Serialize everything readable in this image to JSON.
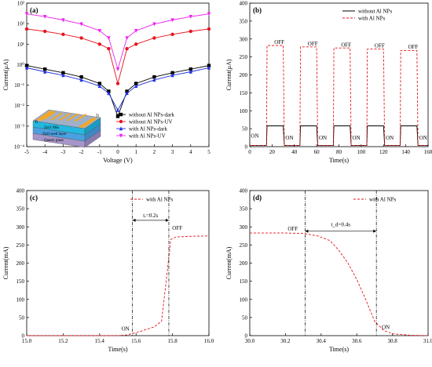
{
  "chart_data": [
    {
      "id": "a",
      "panel_label": "(a)",
      "type": "line",
      "xlabel": "Voltage (V)",
      "ylabel": "Current(μA)",
      "xlim": [
        -5,
        5
      ],
      "ylim_log10": [
        -4,
        3
      ],
      "y_scale": "log",
      "xticks": [
        "-5",
        "-4",
        "-3",
        "-2",
        "-1",
        "0",
        "1",
        "2",
        "3",
        "4",
        "5"
      ],
      "yticks": [
        "10⁻⁴",
        "10⁻³",
        "10⁻²",
        "10⁻¹",
        "10⁰",
        "10¹",
        "10²",
        "10³"
      ],
      "legend_position": "bottom-right",
      "series": [
        {
          "name": "without Al NPs-dark",
          "color": "#000000",
          "marker": "square",
          "x": [
            -5,
            -4,
            -3,
            -2,
            -1,
            -0.5,
            0,
            0.5,
            1,
            2,
            3,
            4,
            5
          ],
          "y": [
            0.9,
            0.6,
            0.4,
            0.25,
            0.12,
            0.05,
            0.003,
            0.05,
            0.12,
            0.25,
            0.4,
            0.6,
            0.9
          ]
        },
        {
          "name": "without Al NPs-UV",
          "color": "#e8141e",
          "marker": "circle",
          "x": [
            -5,
            -4,
            -3,
            -2,
            -1,
            -0.5,
            0,
            0.5,
            1,
            2,
            3,
            4,
            5
          ],
          "y": [
            55,
            42,
            30,
            20,
            10,
            6,
            0.12,
            6,
            10,
            20,
            30,
            42,
            55
          ]
        },
        {
          "name": "with Al NPs-dark",
          "color": "#2030e0",
          "marker": "triangle",
          "x": [
            -5,
            -4,
            -3,
            -2,
            -1,
            -0.5,
            0,
            0.5,
            1,
            2,
            3,
            4,
            5
          ],
          "y": [
            0.7,
            0.45,
            0.3,
            0.18,
            0.09,
            0.04,
            0.006,
            0.04,
            0.09,
            0.18,
            0.3,
            0.45,
            0.7
          ]
        },
        {
          "name": "with Al NPs-UV",
          "color": "#ee22ee",
          "marker": "triangle-down",
          "x": [
            -5,
            -4,
            -3,
            -2,
            -1,
            -0.5,
            0,
            0.5,
            1,
            2,
            3,
            4,
            5
          ],
          "y": [
            300,
            220,
            150,
            95,
            45,
            20,
            0.6,
            20,
            45,
            95,
            150,
            220,
            300
          ]
        }
      ],
      "inset": {
        "layers": [
          "Quartz glass",
          "ZnO seed layer",
          "ZnO NRs"
        ],
        "electrode_label": "Ti",
        "colors": {
          "quartz": "#a695c8",
          "seed": "#4aa0e0",
          "nrs": "#22b8e0",
          "electrode": "#f2a826",
          "top": "#9fb0c8"
        }
      }
    },
    {
      "id": "b",
      "panel_label": "(b)",
      "type": "line",
      "xlabel": "Time(s)",
      "ylabel": "Current(μA)",
      "xlim": [
        0,
        160
      ],
      "ylim": [
        0,
        400
      ],
      "xticks": [
        "0",
        "20",
        "40",
        "60",
        "80",
        "100",
        "120",
        "140",
        "160"
      ],
      "yticks": [
        "0",
        "50",
        "100",
        "150",
        "200",
        "250",
        "300",
        "350",
        "400"
      ],
      "legend_position": "top-right",
      "annotations": [
        "ON",
        "OFF",
        "OFF",
        "OFF",
        "OFF",
        "OFF",
        "ON",
        "ON",
        "ON",
        "ON",
        "ON"
      ],
      "series": [
        {
          "name": "without Al NPs",
          "color": "#000000",
          "style": "solid",
          "x": [
            0,
            15,
            15.5,
            30,
            31,
            45,
            45.5,
            60,
            61,
            75,
            75.5,
            90,
            91,
            105,
            105.5,
            120,
            121,
            135,
            135.5,
            150,
            151,
            160
          ],
          "y": [
            3,
            3,
            58,
            58,
            3,
            3,
            58,
            58,
            3,
            3,
            58,
            58,
            3,
            3,
            58,
            58,
            3,
            3,
            58,
            58,
            3,
            3
          ]
        },
        {
          "name": "with Al NPs",
          "color": "#e8141e",
          "style": "dashed",
          "x": [
            0,
            15,
            15.5,
            30,
            31,
            45,
            45.5,
            60,
            61,
            75,
            75.5,
            90,
            91,
            105,
            105.5,
            120,
            121,
            135,
            135.5,
            150,
            151,
            160
          ],
          "y": [
            3,
            3,
            282,
            282,
            3,
            3,
            278,
            278,
            3,
            3,
            275,
            275,
            3,
            3,
            272,
            272,
            3,
            3,
            268,
            268,
            3,
            3
          ]
        }
      ]
    },
    {
      "id": "c",
      "panel_label": "(c)",
      "type": "line",
      "xlabel": "Time(s)",
      "ylabel": "Current(mA)",
      "xlim": [
        15.0,
        16.0
      ],
      "ylim": [
        0,
        400
      ],
      "xticks": [
        "15.0",
        "15.2",
        "15.4",
        "15.6",
        "15.8",
        "16.0"
      ],
      "yticks": [
        "0",
        "50",
        "100",
        "150",
        "200",
        "250",
        "300",
        "350",
        "400"
      ],
      "legend_position": "top-right",
      "annotations": {
        "tr": "tᵣ=0.2s",
        "on": "ON",
        "off": "OFF"
      },
      "markers_x": [
        15.58,
        15.78
      ],
      "series": [
        {
          "name": "with Al NPs",
          "color": "#e8141e",
          "style": "dashed",
          "x": [
            15.0,
            15.5,
            15.55,
            15.6,
            15.65,
            15.7,
            15.74,
            15.77,
            15.79,
            15.82,
            15.9,
            16.0
          ],
          "y": [
            0,
            0,
            2,
            8,
            16,
            24,
            40,
            170,
            265,
            272,
            274,
            275
          ]
        }
      ]
    },
    {
      "id": "d",
      "panel_label": "(d)",
      "type": "line",
      "xlabel": "Time(s)",
      "ylabel": "Current(mA)",
      "xlim": [
        30.0,
        31.0
      ],
      "ylim": [
        0,
        400
      ],
      "xticks": [
        "30.0",
        "30.2",
        "30.4",
        "30.6",
        "30.8",
        "31.0"
      ],
      "yticks": [
        "0",
        "50",
        "100",
        "150",
        "200",
        "250",
        "300",
        "350",
        "400"
      ],
      "legend_position": "top-right",
      "annotations": {
        "td": "t_d=0.4s",
        "on": "ON",
        "off": "OFF"
      },
      "markers_x": [
        30.31,
        30.71
      ],
      "series": [
        {
          "name": "with Al NPs",
          "color": "#e8141e",
          "style": "dashed",
          "x": [
            30.0,
            30.2,
            30.3,
            30.38,
            30.45,
            30.5,
            30.55,
            30.6,
            30.65,
            30.7,
            30.75,
            30.8,
            30.9,
            31.0
          ],
          "y": [
            283,
            283,
            282,
            275,
            262,
            235,
            200,
            155,
            100,
            40,
            15,
            5,
            1,
            0
          ]
        }
      ]
    }
  ]
}
